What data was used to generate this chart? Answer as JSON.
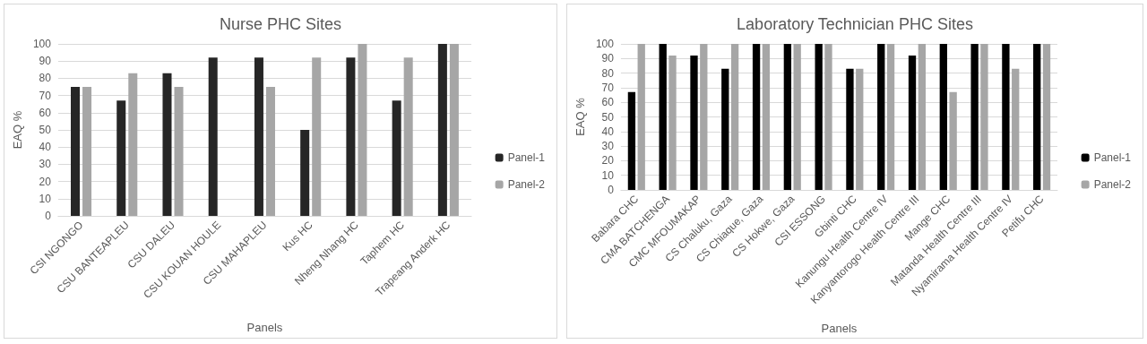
{
  "chart_data": [
    {
      "type": "bar",
      "title": "Nurse PHC Sites",
      "xlabel": "Panels",
      "ylabel": "EAQ %",
      "categories": [
        "CSI NGONGO",
        "CSU BANTEAPLEU",
        "CSU DALEU",
        "CSU KOUAN HOULE",
        "CSU MAHAPLEU",
        "Kus HC",
        "Nheng Nhang HC",
        "Taphem HC",
        "Trapeang Anderk HC"
      ],
      "series": [
        {
          "name": "Panel-1",
          "color": "#262626",
          "values": [
            75,
            67,
            83,
            92,
            92,
            50,
            92,
            67,
            100
          ]
        },
        {
          "name": "Panel-2",
          "color": "#a6a6a6",
          "values": [
            75,
            83,
            75,
            null,
            75,
            92,
            100,
            92,
            100
          ]
        }
      ],
      "ylim": [
        0,
        100
      ],
      "yticks": [
        0,
        10,
        20,
        30,
        40,
        50,
        60,
        70,
        80,
        90,
        100
      ],
      "grid": "y",
      "legend": "right"
    },
    {
      "type": "bar",
      "title": "Laboratory Technician PHC Sites",
      "xlabel": "Panels",
      "ylabel": "EAQ %",
      "categories": [
        "Babara CHC",
        "CMA BATCHENGA",
        "CMC MFOUMAKAP",
        "CS Chaluku, Gaza",
        "CS Chiaque, Gaza",
        "CS Hokwe, Gaza",
        "CSI ESSONG",
        "Gbinti CHC",
        "Kanungu Health Centre IV",
        "Kanyantorogo Health Centre III",
        "Mange CHC",
        "Matanda Health Centre III",
        "Nyamirama Health Centre IV",
        "Petifu CHC"
      ],
      "series": [
        {
          "name": "Panel-1",
          "color": "#000000",
          "values": [
            67,
            100,
            92,
            83,
            100,
            100,
            100,
            83,
            100,
            92,
            100,
            100,
            100,
            100
          ]
        },
        {
          "name": "Panel-2",
          "color": "#a6a6a6",
          "values": [
            100,
            92,
            100,
            100,
            100,
            100,
            100,
            83,
            100,
            100,
            67,
            100,
            83,
            100
          ]
        }
      ],
      "ylim": [
        0,
        100
      ],
      "yticks": [
        0,
        10,
        20,
        30,
        40,
        50,
        60,
        70,
        80,
        90,
        100
      ],
      "grid": "y",
      "legend": "right"
    }
  ]
}
